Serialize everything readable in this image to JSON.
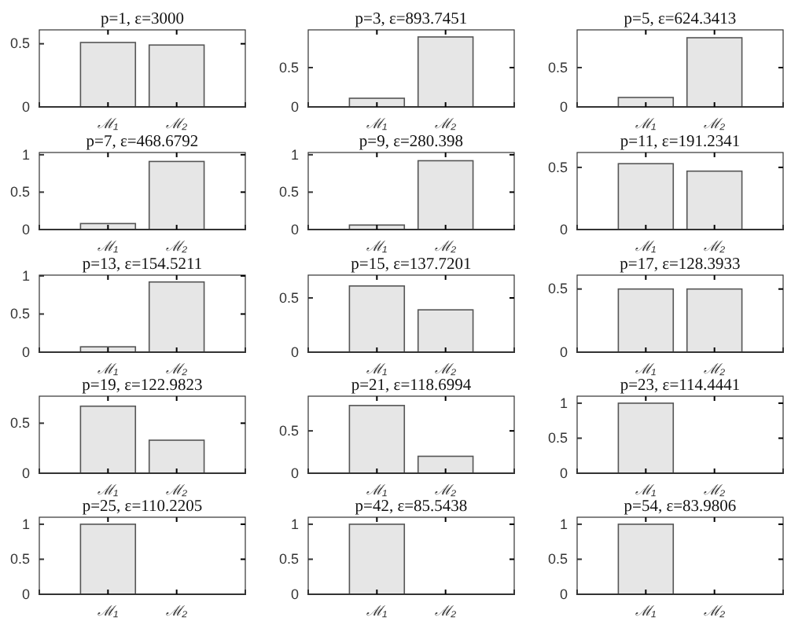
{
  "chart_data": [
    {
      "type": "bar",
      "title": "p=1, ε=3000",
      "categories": [
        "ℳ₁",
        "ℳ₂"
      ],
      "values": [
        0.51,
        0.49
      ],
      "color": "#e6e6e6",
      "ylim": [
        0,
        0.61
      ],
      "yticks": [
        0,
        0.5
      ]
    },
    {
      "type": "bar",
      "title": "p=3, ε=893.7451",
      "categories": [
        "ℳ₁",
        "ℳ₂"
      ],
      "values": [
        0.11,
        0.89
      ],
      "color": "#e6e6e6",
      "ylim": [
        0,
        0.98
      ],
      "yticks": [
        0,
        0.5
      ]
    },
    {
      "type": "bar",
      "title": "p=5, ε=624.3413",
      "categories": [
        "ℳ₁",
        "ℳ₂"
      ],
      "values": [
        0.12,
        0.88
      ],
      "color": "#e6e6e6",
      "ylim": [
        0,
        0.98
      ],
      "yticks": [
        0,
        0.5
      ]
    },
    {
      "type": "bar",
      "title": "p=7, ε=468.6792",
      "categories": [
        "ℳ₁",
        "ℳ₂"
      ],
      "values": [
        0.08,
        0.91
      ],
      "color": "#e6e6e6",
      "ylim": [
        0,
        1.03
      ],
      "yticks": [
        0,
        0.5,
        1
      ]
    },
    {
      "type": "bar",
      "title": "p=9, ε=280.398",
      "categories": [
        "ℳ₁",
        "ℳ₂"
      ],
      "values": [
        0.06,
        0.92
      ],
      "color": "#e6e6e6",
      "ylim": [
        0,
        1.03
      ],
      "yticks": [
        0,
        0.5,
        1
      ]
    },
    {
      "type": "bar",
      "title": "p=11, ε=191.2341",
      "categories": [
        "ℳ₁",
        "ℳ₂"
      ],
      "values": [
        0.53,
        0.47
      ],
      "color": "#e6e6e6",
      "ylim": [
        0,
        0.62
      ],
      "yticks": [
        0,
        0.5
      ]
    },
    {
      "type": "bar",
      "title": "p=13, ε=154.5211",
      "categories": [
        "ℳ₁",
        "ℳ₂"
      ],
      "values": [
        0.07,
        0.92
      ],
      "color": "#e6e6e6",
      "ylim": [
        0,
        1.01
      ],
      "yticks": [
        0,
        0.5,
        1
      ]
    },
    {
      "type": "bar",
      "title": "p=15, ε=137.7201",
      "categories": [
        "ℳ₁",
        "ℳ₂"
      ],
      "values": [
        0.61,
        0.39
      ],
      "color": "#e6e6e6",
      "ylim": [
        0,
        0.71
      ],
      "yticks": [
        0,
        0.5
      ]
    },
    {
      "type": "bar",
      "title": "p=17, ε=128.3933",
      "categories": [
        "ℳ₁",
        "ℳ₂"
      ],
      "values": [
        0.5,
        0.5
      ],
      "color": "#e6e6e6",
      "ylim": [
        0,
        0.61
      ],
      "yticks": [
        0,
        0.5
      ]
    },
    {
      "type": "bar",
      "title": "p=19, ε=122.9823",
      "categories": [
        "ℳ₁",
        "ℳ₂"
      ],
      "values": [
        0.67,
        0.33
      ],
      "color": "#e6e6e6",
      "ylim": [
        0,
        0.77
      ],
      "yticks": [
        0,
        0.5
      ]
    },
    {
      "type": "bar",
      "title": "p=21, ε=118.6994",
      "categories": [
        "ℳ₁",
        "ℳ₂"
      ],
      "values": [
        0.8,
        0.2
      ],
      "color": "#e6e6e6",
      "ylim": [
        0,
        0.91
      ],
      "yticks": [
        0,
        0.5
      ]
    },
    {
      "type": "bar",
      "title": "p=23, ε=114.4441",
      "categories": [
        "ℳ₁",
        "ℳ₂"
      ],
      "values": [
        1,
        0
      ],
      "color": "#e6e6e6",
      "ylim": [
        0,
        1.1
      ],
      "yticks": [
        0,
        0.5,
        1
      ]
    },
    {
      "type": "bar",
      "title": "p=25, ε=110.2205",
      "categories": [
        "ℳ₁",
        "ℳ₂"
      ],
      "values": [
        1,
        0
      ],
      "color": "#e6e6e6",
      "ylim": [
        0,
        1.1
      ],
      "yticks": [
        0,
        0.5,
        1
      ]
    },
    {
      "type": "bar",
      "title": "p=42, ε=85.5438",
      "categories": [
        "ℳ₁",
        "ℳ₂"
      ],
      "values": [
        1,
        0
      ],
      "color": "#e6e6e6",
      "ylim": [
        0,
        1.1
      ],
      "yticks": [
        0,
        0.5,
        1
      ]
    },
    {
      "type": "bar",
      "title": "p=54, ε=83.9806",
      "categories": [
        "ℳ₁",
        "ℳ₂"
      ],
      "values": [
        1,
        0
      ],
      "color": "#e6e6e6",
      "ylim": [
        0,
        1.1
      ],
      "yticks": [
        0,
        0.5,
        1
      ]
    }
  ]
}
